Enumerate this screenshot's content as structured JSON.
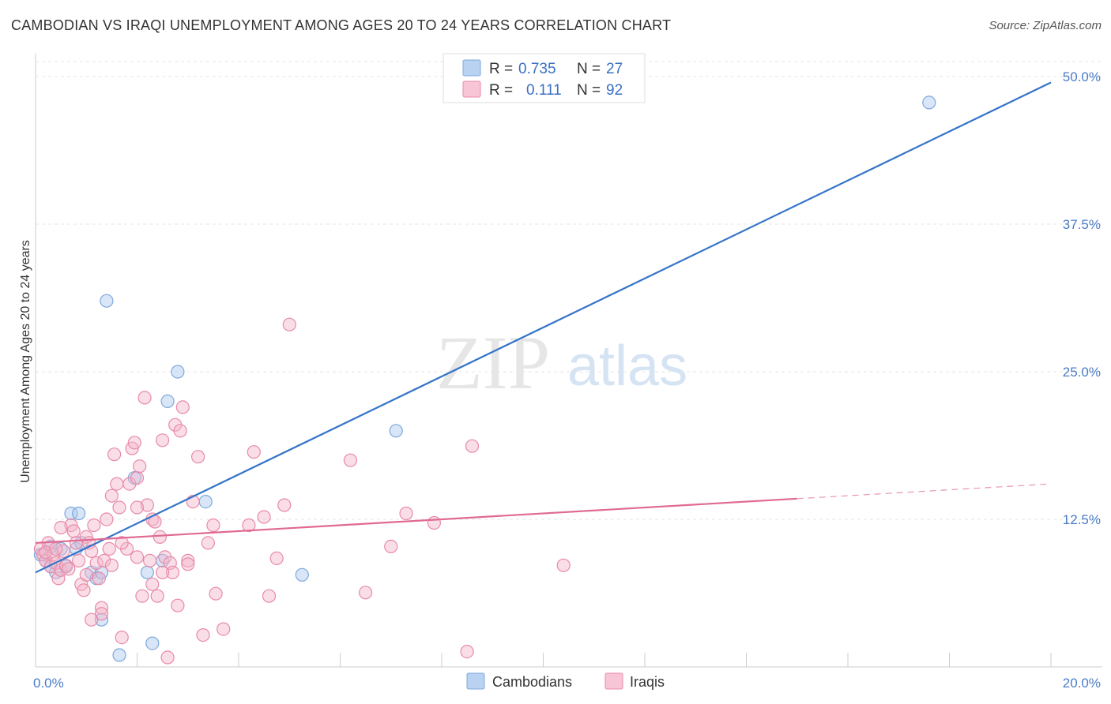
{
  "header": {
    "title": "CAMBODIAN VS IRAQI UNEMPLOYMENT AMONG AGES 20 TO 24 YEARS CORRELATION CHART",
    "source": "Source: ZipAtlas.com"
  },
  "watermark": {
    "zip": "ZIP",
    "atlas": "atlas"
  },
  "legend": {
    "rows": [
      {
        "r_label": "R =",
        "r_value": "0.735",
        "n_label": "N =",
        "n_value": "27",
        "color": "#a9c7ee"
      },
      {
        "r_label": "R =",
        "r_value": "0.111",
        "n_label": "N =",
        "n_value": "92",
        "color": "#f5b6ca"
      }
    ]
  },
  "bottom_legend": [
    {
      "label": "Cambodians",
      "color": "#a9c7ee"
    },
    {
      "label": "Iraqis",
      "color": "#f5b6ca"
    }
  ],
  "chart_data": {
    "type": "scatter",
    "ylabel": "Unemployment Among Ages 20 to 24 years",
    "xlim": [
      0,
      20
    ],
    "ylim": [
      0,
      50
    ],
    "x_tick_labels": {
      "min": "0.0%",
      "max": "20.0%"
    },
    "y_ticks": [
      {
        "value": 12.5,
        "label": "12.5%"
      },
      {
        "value": 25,
        "label": "25.0%"
      },
      {
        "value": 37.5,
        "label": "37.5%"
      },
      {
        "value": 50,
        "label": "50.0%"
      }
    ],
    "grid": true,
    "legend_position": "top-center",
    "series": [
      {
        "name": "Cambodians",
        "color": "#a9c7ee",
        "stroke": "#7ea8dd",
        "trend_color": "#3474c8",
        "trend": {
          "x1": 0.0,
          "y1": 8.0,
          "x2": 20.0,
          "y2": 49.5,
          "dashed_from": null
        },
        "points": [
          [
            0.1,
            9.5
          ],
          [
            0.2,
            9.0
          ],
          [
            0.3,
            8.5
          ],
          [
            0.4,
            8.0
          ],
          [
            0.5,
            10.0
          ],
          [
            0.6,
            8.5
          ],
          [
            0.7,
            13.0
          ],
          [
            0.8,
            10.0
          ],
          [
            0.85,
            13.0
          ],
          [
            0.9,
            10.5
          ],
          [
            1.1,
            8.0
          ],
          [
            1.2,
            7.5
          ],
          [
            1.3,
            4.0
          ],
          [
            1.3,
            8.0
          ],
          [
            1.4,
            31.0
          ],
          [
            1.65,
            1.0
          ],
          [
            1.95,
            16.0
          ],
          [
            2.2,
            8.0
          ],
          [
            2.3,
            2.0
          ],
          [
            2.5,
            9.0
          ],
          [
            2.6,
            22.5
          ],
          [
            2.8,
            25.0
          ],
          [
            3.35,
            14.0
          ],
          [
            5.25,
            7.8
          ],
          [
            7.1,
            20.0
          ],
          [
            17.6,
            47.8
          ],
          [
            0.3,
            10.2
          ]
        ]
      },
      {
        "name": "Iraqis",
        "color": "#f5b6ca",
        "stroke": "#e88aa8",
        "trend_color": "#e06a92",
        "trend": {
          "x1": 0.0,
          "y1": 10.5,
          "x2": 20.0,
          "y2": 15.5,
          "dashed_from": 15.0
        },
        "points": [
          [
            0.1,
            10.0
          ],
          [
            0.15,
            9.5
          ],
          [
            0.2,
            9.0
          ],
          [
            0.25,
            10.5
          ],
          [
            0.3,
            8.5
          ],
          [
            0.35,
            9.5
          ],
          [
            0.4,
            8.8
          ],
          [
            0.45,
            7.5
          ],
          [
            0.5,
            8.2
          ],
          [
            0.55,
            9.8
          ],
          [
            0.6,
            8.6
          ],
          [
            0.7,
            12.0
          ],
          [
            0.75,
            11.5
          ],
          [
            0.8,
            10.5
          ],
          [
            0.85,
            9.0
          ],
          [
            0.9,
            7.0
          ],
          [
            0.95,
            6.5
          ],
          [
            1.0,
            11.0
          ],
          [
            1.05,
            10.5
          ],
          [
            1.1,
            9.8
          ],
          [
            1.15,
            12.0
          ],
          [
            1.2,
            8.8
          ],
          [
            1.25,
            7.5
          ],
          [
            1.3,
            5.0
          ],
          [
            1.3,
            4.5
          ],
          [
            1.35,
            9.0
          ],
          [
            1.4,
            12.5
          ],
          [
            1.45,
            10.0
          ],
          [
            1.5,
            14.5
          ],
          [
            1.55,
            18.0
          ],
          [
            1.6,
            15.5
          ],
          [
            1.65,
            13.5
          ],
          [
            1.7,
            2.5
          ],
          [
            1.8,
            10.0
          ],
          [
            1.85,
            15.5
          ],
          [
            1.9,
            18.5
          ],
          [
            1.95,
            19.0
          ],
          [
            2.0,
            16.0
          ],
          [
            2.05,
            17.0
          ],
          [
            2.1,
            6.0
          ],
          [
            2.15,
            22.8
          ],
          [
            2.2,
            13.7
          ],
          [
            2.25,
            9.0
          ],
          [
            2.3,
            12.5
          ],
          [
            2.35,
            12.3
          ],
          [
            2.4,
            6.0
          ],
          [
            2.45,
            11.0
          ],
          [
            2.5,
            19.2
          ],
          [
            2.55,
            9.3
          ],
          [
            2.6,
            0.8
          ],
          [
            2.65,
            8.8
          ],
          [
            2.7,
            8.0
          ],
          [
            2.75,
            20.5
          ],
          [
            2.8,
            5.2
          ],
          [
            2.85,
            20.0
          ],
          [
            2.9,
            22.0
          ],
          [
            3.0,
            9.0
          ],
          [
            3.1,
            14.0
          ],
          [
            3.2,
            17.8
          ],
          [
            3.3,
            2.7
          ],
          [
            3.4,
            10.5
          ],
          [
            3.5,
            12.0
          ],
          [
            3.55,
            6.2
          ],
          [
            3.7,
            3.2
          ],
          [
            4.2,
            12.0
          ],
          [
            4.3,
            18.2
          ],
          [
            4.5,
            12.7
          ],
          [
            4.6,
            6.0
          ],
          [
            4.75,
            9.2
          ],
          [
            4.9,
            13.7
          ],
          [
            5.0,
            29.0
          ],
          [
            6.2,
            17.5
          ],
          [
            6.5,
            6.3
          ],
          [
            7.0,
            10.2
          ],
          [
            7.3,
            13.0
          ],
          [
            7.85,
            12.2
          ],
          [
            8.6,
            18.7
          ],
          [
            8.5,
            1.3
          ],
          [
            10.4,
            8.6
          ],
          [
            0.5,
            11.8
          ],
          [
            0.65,
            8.3
          ],
          [
            1.0,
            7.8
          ],
          [
            1.7,
            10.5
          ],
          [
            2.0,
            9.3
          ],
          [
            2.3,
            7.0
          ],
          [
            0.2,
            9.7
          ],
          [
            0.4,
            10.0
          ],
          [
            1.1,
            4.0
          ],
          [
            1.5,
            8.6
          ],
          [
            2.0,
            13.5
          ],
          [
            2.5,
            8.0
          ],
          [
            3.0,
            8.7
          ]
        ]
      }
    ]
  }
}
